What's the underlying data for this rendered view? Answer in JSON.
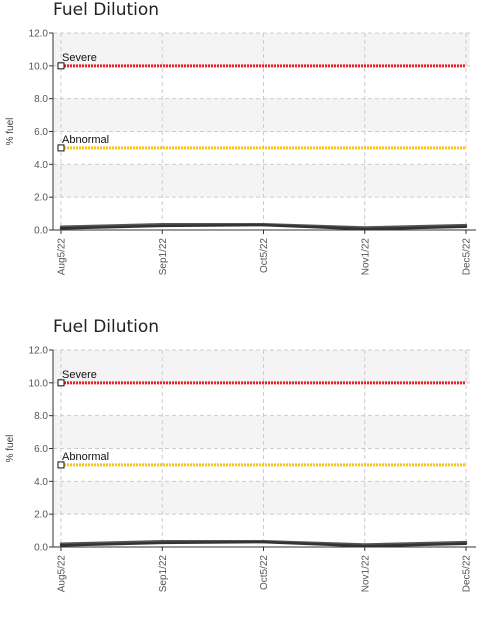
{
  "chart_data": [
    {
      "type": "line",
      "title": "Fuel Dilution",
      "ylabel": "% fuel",
      "xlabel": "",
      "ylim": [
        0,
        12
      ],
      "yticks": [
        "0.0",
        "2.0",
        "4.0",
        "6.0",
        "8.0",
        "10.0",
        "12.0"
      ],
      "x_ticks": [
        "Aug5/22",
        "Sep1/22",
        "Oct5/22",
        "Nov1/22",
        "Dec5/22"
      ],
      "grid": true,
      "thresholds": [
        {
          "name": "Severe",
          "value": 10.0,
          "color": "#e8232a"
        },
        {
          "name": "Abnormal",
          "value": 5.0,
          "color": "#f5c518"
        }
      ],
      "series": [
        {
          "color": "#555555",
          "x": [
            "Aug5/22",
            "Sep1/22",
            "Oct5/22",
            "Nov1/22",
            "Dec5/22"
          ],
          "values": [
            0.2,
            0.35,
            0.35,
            0.15,
            0.3
          ]
        },
        {
          "color": "#333333",
          "x": [
            "Aug5/22",
            "Sep1/22",
            "Oct5/22",
            "Nov1/22",
            "Dec5/22"
          ],
          "values": [
            0.1,
            0.25,
            0.3,
            0.05,
            0.2
          ]
        }
      ]
    },
    {
      "type": "line",
      "title": "Fuel Dilution",
      "ylabel": "% fuel",
      "xlabel": "",
      "ylim": [
        0,
        12
      ],
      "yticks": [
        "0.0",
        "2.0",
        "4.0",
        "6.0",
        "8.0",
        "10.0",
        "12.0"
      ],
      "x_ticks": [
        "Aug5/22",
        "Sep1/22",
        "Oct5/22",
        "Nov1/22",
        "Dec5/22"
      ],
      "grid": true,
      "thresholds": [
        {
          "name": "Severe",
          "value": 10.0,
          "color": "#e8232a"
        },
        {
          "name": "Abnormal",
          "value": 5.0,
          "color": "#f5c518"
        }
      ],
      "series": [
        {
          "color": "#555555",
          "x": [
            "Aug5/22",
            "Sep1/22",
            "Oct5/22",
            "Nov1/22",
            "Dec5/22"
          ],
          "values": [
            0.2,
            0.35,
            0.35,
            0.15,
            0.3
          ]
        },
        {
          "color": "#333333",
          "x": [
            "Aug5/22",
            "Sep1/22",
            "Oct5/22",
            "Nov1/22",
            "Dec5/22"
          ],
          "values": [
            0.1,
            0.25,
            0.3,
            0.05,
            0.2
          ]
        }
      ]
    }
  ]
}
